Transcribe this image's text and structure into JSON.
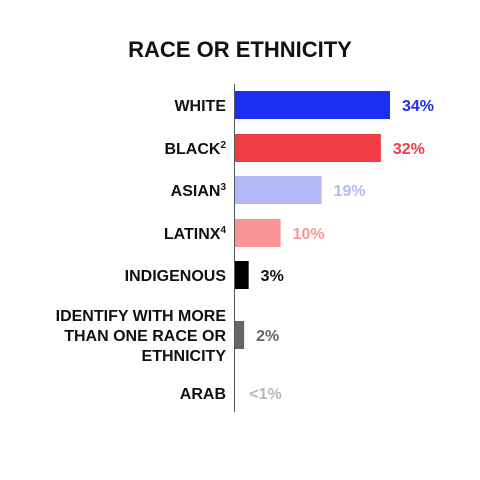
{
  "chart_data": {
    "type": "bar",
    "orientation": "horizontal",
    "title": "RACE OR ETHNICITY",
    "categories": [
      {
        "label_lines": [
          "WHITE"
        ],
        "sup": ""
      },
      {
        "label_lines": [
          "BLACK"
        ],
        "sup": "2"
      },
      {
        "label_lines": [
          "ASIAN"
        ],
        "sup": "3"
      },
      {
        "label_lines": [
          "LATINX"
        ],
        "sup": "4"
      },
      {
        "label_lines": [
          "INDIGENOUS"
        ],
        "sup": ""
      },
      {
        "label_lines": [
          "IDENTIFY WITH MORE",
          "THAN ONE RACE OR",
          "ETHNICITY"
        ],
        "sup": ""
      },
      {
        "label_lines": [
          "ARAB"
        ],
        "sup": ""
      }
    ],
    "values": [
      34,
      32,
      19,
      10,
      3,
      2,
      0.5
    ],
    "value_labels": [
      "34%",
      "32%",
      "19%",
      "10%",
      "3%",
      "2%",
      "<1%"
    ],
    "bar_colors": [
      "#1a2ff0",
      "#f23c44",
      "#b3b8f7",
      "#f99596",
      "#000000",
      "#666666",
      "#ffffff"
    ],
    "label_colors": [
      "#1a2ff0",
      "#f23c44",
      "#b3b8f7",
      "#f99596",
      "#111111",
      "#666666",
      "#b8b8b8"
    ],
    "xlim": [
      0,
      34
    ],
    "grid": false,
    "legend": "none"
  }
}
